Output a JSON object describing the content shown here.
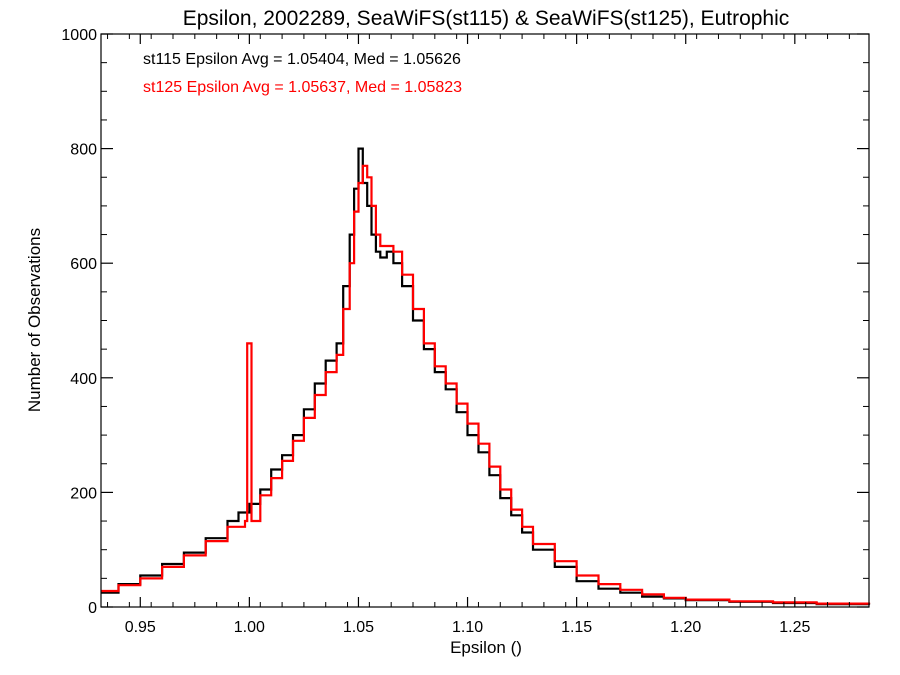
{
  "chart_data": {
    "type": "line",
    "title": "Epsilon, 2002289, SeaWiFS(st115) & SeaWiFS(st125), Eutrophic",
    "xlabel": "Epsilon ()",
    "ylabel": "Number of Observations",
    "xlim": [
      0.932,
      1.284
    ],
    "ylim": [
      0,
      1000
    ],
    "x_ticks": [
      0.95,
      1.0,
      1.05,
      1.1,
      1.15,
      1.2,
      1.25
    ],
    "x_tick_labels": [
      "0.95",
      "1.00",
      "1.05",
      "1.10",
      "1.15",
      "1.20",
      "1.25"
    ],
    "y_ticks": [
      0,
      200,
      400,
      600,
      800,
      1000
    ],
    "y_tick_labels": [
      "0",
      "200",
      "400",
      "600",
      "800",
      "1000"
    ],
    "grid": false,
    "series": [
      {
        "color": "#000000",
        "annotation": "st115 Epsilon Avg = 1.05404, Med = 1.05626",
        "x": [
          0.932,
          0.94,
          0.95,
          0.96,
          0.97,
          0.98,
          0.99,
          0.995,
          1.0,
          1.005,
          1.01,
          1.015,
          1.02,
          1.025,
          1.03,
          1.035,
          1.04,
          1.043,
          1.046,
          1.048,
          1.05,
          1.052,
          1.054,
          1.056,
          1.058,
          1.06,
          1.063,
          1.066,
          1.07,
          1.075,
          1.08,
          1.085,
          1.09,
          1.095,
          1.1,
          1.105,
          1.11,
          1.115,
          1.12,
          1.125,
          1.13,
          1.14,
          1.15,
          1.16,
          1.17,
          1.18,
          1.19,
          1.2,
          1.22,
          1.24,
          1.26,
          1.284
        ],
        "y": [
          25,
          40,
          55,
          75,
          95,
          120,
          150,
          165,
          180,
          205,
          240,
          265,
          300,
          345,
          390,
          430,
          460,
          560,
          650,
          730,
          800,
          740,
          700,
          650,
          620,
          610,
          620,
          600,
          560,
          500,
          450,
          410,
          380,
          340,
          300,
          270,
          230,
          190,
          160,
          130,
          100,
          70,
          45,
          32,
          25,
          18,
          15,
          12,
          9,
          7,
          5,
          4
        ]
      },
      {
        "color": "#ff0000",
        "annotation": "st125 Epsilon Avg = 1.05637, Med = 1.05823",
        "x": [
          0.932,
          0.94,
          0.95,
          0.96,
          0.97,
          0.98,
          0.99,
          0.998,
          0.999,
          1.0,
          1.001,
          1.005,
          1.01,
          1.015,
          1.02,
          1.025,
          1.03,
          1.035,
          1.04,
          1.043,
          1.046,
          1.048,
          1.05,
          1.052,
          1.054,
          1.056,
          1.058,
          1.06,
          1.063,
          1.066,
          1.07,
          1.075,
          1.08,
          1.085,
          1.09,
          1.095,
          1.1,
          1.105,
          1.11,
          1.115,
          1.12,
          1.125,
          1.13,
          1.14,
          1.15,
          1.16,
          1.17,
          1.18,
          1.19,
          1.2,
          1.22,
          1.24,
          1.26,
          1.284
        ],
        "y": [
          28,
          38,
          50,
          70,
          90,
          115,
          140,
          150,
          460,
          460,
          150,
          195,
          225,
          255,
          290,
          330,
          370,
          410,
          440,
          520,
          600,
          690,
          740,
          770,
          750,
          700,
          650,
          630,
          630,
          620,
          580,
          520,
          460,
          420,
          390,
          355,
          320,
          285,
          245,
          205,
          170,
          140,
          110,
          80,
          55,
          40,
          30,
          22,
          16,
          13,
          10,
          8,
          6,
          5
        ]
      }
    ]
  }
}
